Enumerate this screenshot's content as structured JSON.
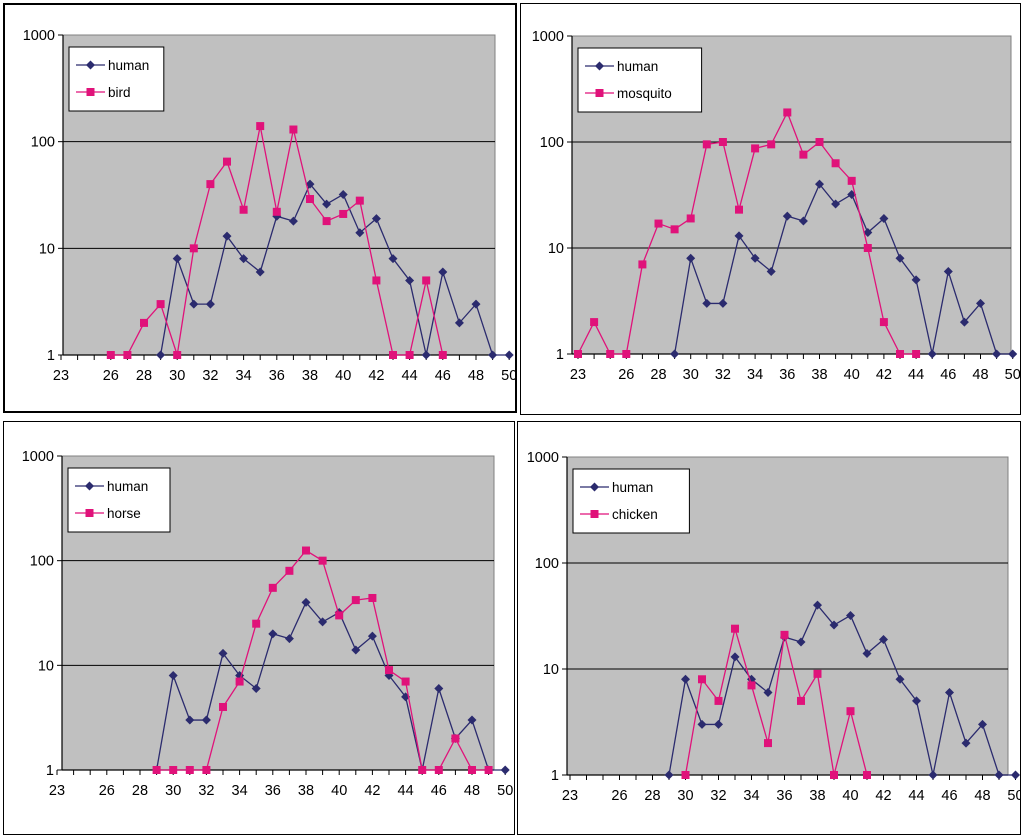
{
  "plot_area_color": "#c0c0c0",
  "gridline_color": "#000000",
  "human_color": "#2b2b6e",
  "other_color": "#e0127a",
  "chart_data": [
    {
      "type": "line",
      "yscale": "log",
      "ylim": [
        1,
        1000
      ],
      "ytick_labels": [
        "1",
        "10",
        "100",
        "1000"
      ],
      "x_categories": [
        23,
        24,
        25,
        26,
        27,
        28,
        29,
        30,
        31,
        32,
        33,
        34,
        35,
        36,
        37,
        38,
        39,
        40,
        41,
        42,
        43,
        44,
        45,
        46,
        47,
        48,
        49,
        50
      ],
      "xtick_labels": [
        "23",
        "26",
        "28",
        "30",
        "32",
        "34",
        "36",
        "38",
        "40",
        "42",
        "44",
        "46",
        "48",
        "50"
      ],
      "grid": true,
      "legend_position": "top-left",
      "series": [
        {
          "name": "human",
          "marker": "diamond",
          "color": "#2b2b6e",
          "x": [
            29,
            30,
            31,
            32,
            33,
            34,
            35,
            36,
            37,
            38,
            39,
            40,
            41,
            42,
            43,
            44,
            45,
            46,
            47,
            48,
            49,
            50
          ],
          "y": [
            1,
            8,
            3,
            3,
            13,
            8,
            6,
            20,
            18,
            40,
            26,
            32,
            14,
            19,
            8,
            5,
            1,
            6,
            2,
            3,
            1,
            1
          ]
        },
        {
          "name": "bird",
          "marker": "square",
          "color": "#e0127a",
          "x": [
            26,
            27,
            28,
            29,
            30,
            31,
            32,
            33,
            34,
            35,
            36,
            37,
            38,
            39,
            40,
            41,
            42,
            43,
            44,
            45,
            46
          ],
          "y": [
            1,
            1,
            2,
            3,
            1,
            10,
            40,
            65,
            23,
            140,
            22,
            130,
            29,
            18,
            21,
            28,
            5,
            1,
            1,
            5,
            1
          ]
        }
      ]
    },
    {
      "type": "line",
      "yscale": "log",
      "ylim": [
        1,
        1000
      ],
      "ytick_labels": [
        "1",
        "10",
        "100",
        "1000"
      ],
      "x_categories": [
        23,
        24,
        25,
        26,
        27,
        28,
        29,
        30,
        31,
        32,
        33,
        34,
        35,
        36,
        37,
        38,
        39,
        40,
        41,
        42,
        43,
        44,
        45,
        46,
        47,
        48,
        49,
        50
      ],
      "xtick_labels": [
        "23",
        "26",
        "28",
        "30",
        "32",
        "34",
        "36",
        "38",
        "40",
        "42",
        "44",
        "46",
        "48",
        "50"
      ],
      "grid": true,
      "legend_position": "top-left",
      "series": [
        {
          "name": "human",
          "marker": "diamond",
          "color": "#2b2b6e",
          "x": [
            29,
            30,
            31,
            32,
            33,
            34,
            35,
            36,
            37,
            38,
            39,
            40,
            41,
            42,
            43,
            44,
            45,
            46,
            47,
            48,
            49,
            50
          ],
          "y": [
            1,
            8,
            3,
            3,
            13,
            8,
            6,
            20,
            18,
            40,
            26,
            32,
            14,
            19,
            8,
            5,
            1,
            6,
            2,
            3,
            1,
            1
          ]
        },
        {
          "name": "mosquito",
          "marker": "square",
          "color": "#e0127a",
          "x": [
            23,
            24,
            25,
            26,
            27,
            28,
            29,
            30,
            31,
            32,
            33,
            34,
            35,
            36,
            37,
            38,
            39,
            40,
            41,
            42,
            43,
            44
          ],
          "y": [
            1,
            2,
            1,
            1,
            7,
            17,
            15,
            19,
            95,
            100,
            23,
            87,
            95,
            190,
            76,
            100,
            63,
            43,
            10,
            2,
            1,
            1
          ]
        }
      ]
    },
    {
      "type": "line",
      "yscale": "log",
      "ylim": [
        1,
        1000
      ],
      "ytick_labels": [
        "1",
        "10",
        "100",
        "1000"
      ],
      "x_categories": [
        23,
        24,
        25,
        26,
        27,
        28,
        29,
        30,
        31,
        32,
        33,
        34,
        35,
        36,
        37,
        38,
        39,
        40,
        41,
        42,
        43,
        44,
        45,
        46,
        47,
        48,
        49,
        50
      ],
      "xtick_labels": [
        "23",
        "26",
        "28",
        "30",
        "32",
        "34",
        "36",
        "38",
        "40",
        "42",
        "44",
        "46",
        "48",
        "50"
      ],
      "grid": true,
      "legend_position": "top-left",
      "series": [
        {
          "name": "human",
          "marker": "diamond",
          "color": "#2b2b6e",
          "x": [
            29,
            30,
            31,
            32,
            33,
            34,
            35,
            36,
            37,
            38,
            39,
            40,
            41,
            42,
            43,
            44,
            45,
            46,
            47,
            48,
            49,
            50
          ],
          "y": [
            1,
            8,
            3,
            3,
            13,
            8,
            6,
            20,
            18,
            40,
            26,
            32,
            14,
            19,
            8,
            5,
            1,
            6,
            2,
            3,
            1,
            1
          ]
        },
        {
          "name": "horse",
          "marker": "square",
          "color": "#e0127a",
          "x": [
            29,
            30,
            31,
            32,
            33,
            34,
            35,
            36,
            37,
            38,
            39,
            40,
            41,
            42,
            43,
            44,
            45,
            46,
            47,
            48,
            49
          ],
          "y": [
            1,
            1,
            1,
            1,
            4,
            7,
            25,
            55,
            80,
            125,
            100,
            30,
            42,
            44,
            9,
            7,
            1,
            1,
            2,
            1,
            1
          ]
        }
      ]
    },
    {
      "type": "line",
      "yscale": "log",
      "ylim": [
        1,
        1000
      ],
      "ytick_labels": [
        "1",
        "10",
        "100",
        "1000"
      ],
      "x_categories": [
        23,
        24,
        25,
        26,
        27,
        28,
        29,
        30,
        31,
        32,
        33,
        34,
        35,
        36,
        37,
        38,
        39,
        40,
        41,
        42,
        43,
        44,
        45,
        46,
        47,
        48,
        49,
        50
      ],
      "xtick_labels": [
        "23",
        "26",
        "28",
        "30",
        "32",
        "34",
        "36",
        "38",
        "40",
        "42",
        "44",
        "46",
        "48",
        "50"
      ],
      "grid": true,
      "legend_position": "top-left",
      "series": [
        {
          "name": "human",
          "marker": "diamond",
          "color": "#2b2b6e",
          "x": [
            29,
            30,
            31,
            32,
            33,
            34,
            35,
            36,
            37,
            38,
            39,
            40,
            41,
            42,
            43,
            44,
            45,
            46,
            47,
            48,
            49,
            50
          ],
          "y": [
            1,
            8,
            3,
            3,
            13,
            8,
            6,
            20,
            18,
            40,
            26,
            32,
            14,
            19,
            8,
            5,
            1,
            6,
            2,
            3,
            1,
            1
          ]
        },
        {
          "name": "chicken",
          "marker": "square",
          "color": "#e0127a",
          "x": [
            30,
            31,
            32,
            33,
            34,
            35,
            36,
            37,
            38,
            39,
            40,
            41
          ],
          "y": [
            1,
            8,
            5,
            24,
            7,
            2,
            21,
            5,
            9,
            1,
            4,
            1
          ]
        }
      ]
    }
  ]
}
